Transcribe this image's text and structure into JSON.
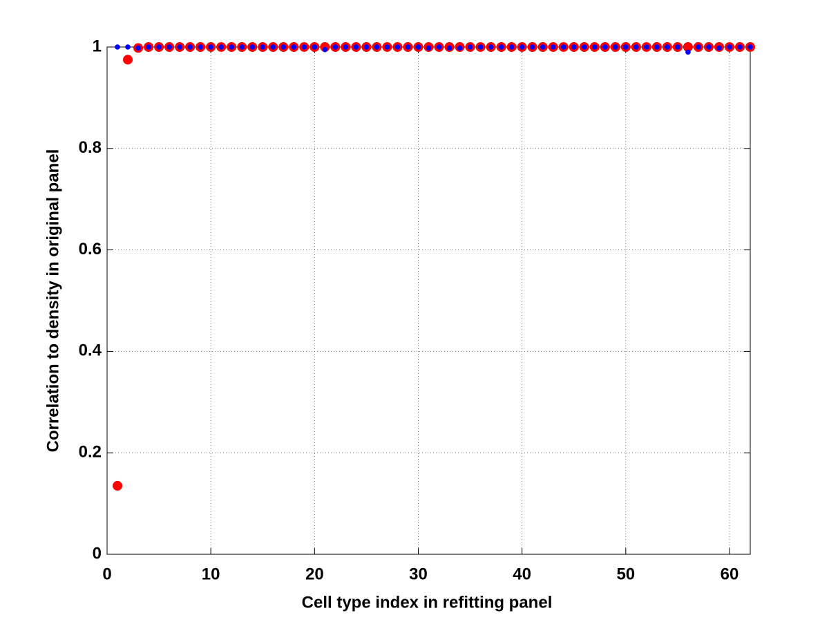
{
  "chart_data": {
    "type": "scatter",
    "x_label": "Cell type index in refitting panel",
    "y_label": "Correlation to density in original panel",
    "x": [
      1,
      2,
      3,
      4,
      5,
      6,
      7,
      8,
      9,
      10,
      11,
      12,
      13,
      14,
      15,
      16,
      17,
      18,
      19,
      20,
      21,
      22,
      23,
      24,
      25,
      26,
      27,
      28,
      29,
      30,
      31,
      32,
      33,
      34,
      35,
      36,
      37,
      38,
      39,
      40,
      41,
      42,
      43,
      44,
      45,
      46,
      47,
      48,
      49,
      50,
      51,
      52,
      53,
      54,
      55,
      56,
      57,
      58,
      59,
      60,
      61,
      62
    ],
    "series": [
      {
        "color": "#ff0000",
        "values": [
          0.135,
          0.975,
          0.998,
          1,
          1,
          1,
          1,
          1,
          1,
          1,
          1,
          1,
          1,
          1,
          1,
          1,
          1,
          1,
          1,
          1,
          1,
          1,
          1,
          1,
          1,
          1,
          1,
          1,
          1,
          1,
          1,
          1,
          1,
          1,
          1,
          1,
          1,
          1,
          1,
          1,
          1,
          1,
          1,
          1,
          1,
          1,
          1,
          1,
          1,
          1,
          1,
          1,
          1,
          1,
          1,
          1,
          1,
          1,
          1,
          1,
          1,
          1
        ]
      },
      {
        "color": "#0000ff",
        "values": [
          1,
          1,
          0.998,
          1,
          1,
          1,
          1,
          1,
          1,
          1,
          1,
          1,
          1,
          1,
          1,
          1,
          1,
          1,
          1,
          1,
          0.995,
          1,
          1,
          1,
          1,
          1,
          1,
          1,
          1,
          1,
          0.998,
          1,
          0.998,
          0.998,
          1,
          1,
          1,
          1,
          1,
          1,
          1,
          1,
          1,
          1,
          1,
          1,
          1,
          1,
          1,
          1,
          1,
          1,
          1,
          1,
          1,
          0.99,
          1,
          1,
          0.998,
          1,
          1,
          1
        ]
      }
    ],
    "xlim": [
      0,
      62
    ],
    "xticks": [
      0,
      10,
      20,
      30,
      40,
      50,
      60
    ],
    "ylim": [
      0,
      1
    ],
    "yticks": [
      0,
      0.2,
      0.4,
      0.6,
      0.8,
      1
    ],
    "grid": true
  }
}
